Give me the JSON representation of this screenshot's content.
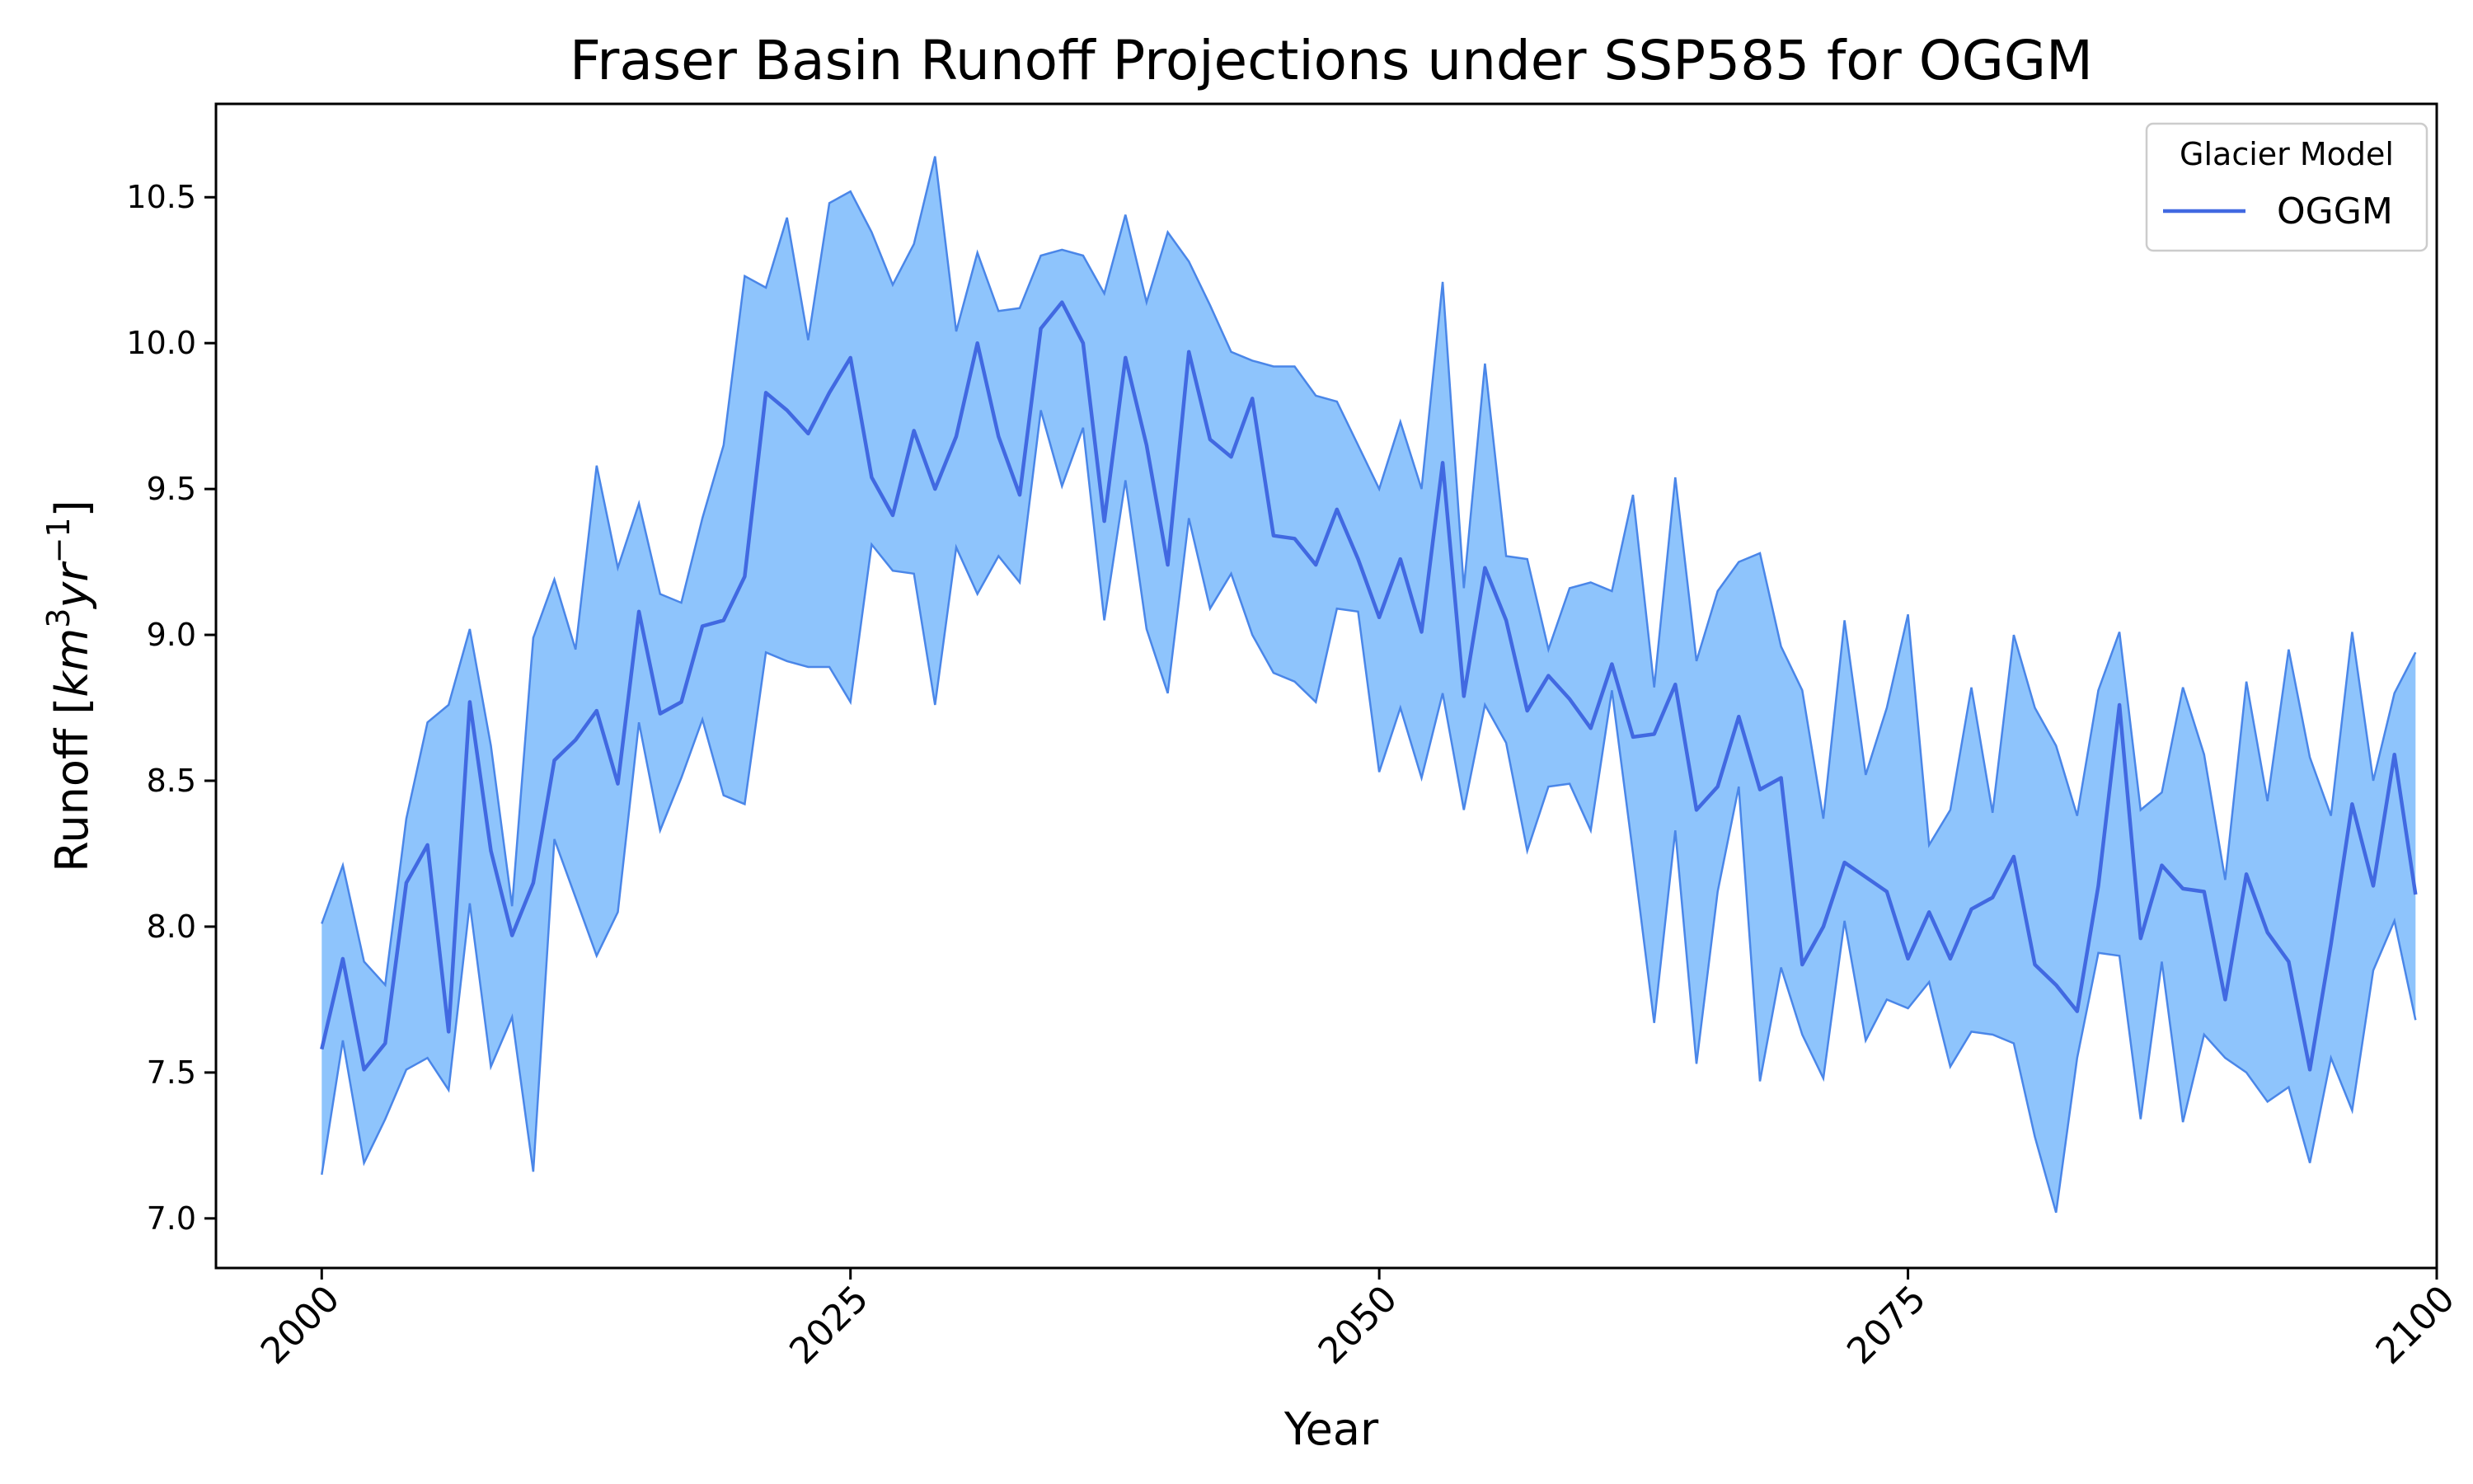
{
  "chart_data": {
    "type": "line",
    "title": "Fraser Basin Runoff Projections under SSP585 for OGGM",
    "xlabel": "Year",
    "ylabel_main": "Runoff [",
    "ylabel_unit_base": "km",
    "ylabel_unit_exp1": "3",
    "ylabel_unit_mid": "yr",
    "ylabel_unit_exp2": "−1",
    "ylabel_close": "]",
    "xlim": [
      1995,
      2100
    ],
    "ylim": [
      6.83,
      10.82
    ],
    "xticks": [
      2000,
      2025,
      2050,
      2075,
      2100
    ],
    "yticks": [
      7.0,
      7.5,
      8.0,
      8.5,
      9.0,
      9.5,
      10.0,
      10.5
    ],
    "ytick_labels": [
      "7.0",
      "7.5",
      "8.0",
      "8.5",
      "9.0",
      "9.5",
      "10.0",
      "10.5"
    ],
    "xtick_labels": [
      "2000",
      "2025",
      "2050",
      "2075",
      "2100"
    ],
    "grid": false,
    "legend": {
      "title": "Glacier Model",
      "position": "top-right",
      "entries": [
        "OGGM"
      ]
    },
    "colors": {
      "line": "#4169e1",
      "band_fill": "#8ec4fc",
      "band_edge": "#4a86e8"
    },
    "x": [
      2000,
      2001,
      2002,
      2003,
      2004,
      2005,
      2006,
      2007,
      2008,
      2009,
      2010,
      2011,
      2012,
      2013,
      2014,
      2015,
      2016,
      2017,
      2018,
      2019,
      2020,
      2021,
      2022,
      2023,
      2024,
      2025,
      2026,
      2027,
      2028,
      2029,
      2030,
      2031,
      2032,
      2033,
      2034,
      2035,
      2036,
      2037,
      2038,
      2039,
      2040,
      2041,
      2042,
      2043,
      2044,
      2045,
      2046,
      2047,
      2048,
      2049,
      2050,
      2051,
      2052,
      2053,
      2054,
      2055,
      2056,
      2057,
      2058,
      2059,
      2060,
      2061,
      2062,
      2063,
      2064,
      2065,
      2066,
      2067,
      2068,
      2069,
      2070,
      2071,
      2072,
      2073,
      2074,
      2075,
      2076,
      2077,
      2078,
      2079,
      2080,
      2081,
      2082,
      2083,
      2084,
      2085,
      2086,
      2087,
      2088,
      2089,
      2090,
      2091,
      2092,
      2093,
      2094,
      2095,
      2096,
      2097,
      2098,
      2099
    ],
    "series": [
      {
        "name": "OGGM",
        "values": [
          7.58,
          7.89,
          7.51,
          7.6,
          8.15,
          8.28,
          7.64,
          8.77,
          8.26,
          7.97,
          8.15,
          8.57,
          8.64,
          8.74,
          8.49,
          9.08,
          8.73,
          8.77,
          9.03,
          9.05,
          9.2,
          9.83,
          9.77,
          9.69,
          9.83,
          9.95,
          9.54,
          9.41,
          9.7,
          9.5,
          9.68,
          10.0,
          9.68,
          9.48,
          10.05,
          10.14,
          10.0,
          9.39,
          9.95,
          9.65,
          9.24,
          9.97,
          9.67,
          9.61,
          9.81,
          9.34,
          9.33,
          9.24,
          9.43,
          9.26,
          9.06,
          9.26,
          9.01,
          9.59,
          8.79,
          9.23,
          9.05,
          8.74,
          8.86,
          8.78,
          8.68,
          8.9,
          8.65,
          8.66,
          8.83,
          8.4,
          8.48,
          8.72,
          8.47,
          8.51,
          7.87,
          8.0,
          8.22,
          8.17,
          8.12,
          7.89,
          8.05,
          7.89,
          8.06,
          8.1,
          8.24,
          7.87,
          7.8,
          7.71,
          8.14,
          8.76,
          7.96,
          8.21,
          8.13,
          8.12,
          7.75,
          8.18,
          7.98,
          7.88,
          7.51,
          7.94,
          8.42,
          8.14,
          8.59,
          8.11
        ]
      }
    ],
    "band": {
      "upper": [
        8.01,
        8.21,
        7.88,
        7.8,
        8.37,
        8.7,
        8.76,
        9.02,
        8.62,
        8.07,
        8.99,
        9.19,
        8.95,
        9.58,
        9.23,
        9.45,
        9.14,
        9.11,
        9.4,
        9.65,
        10.23,
        10.19,
        10.43,
        10.01,
        10.48,
        10.52,
        10.38,
        10.2,
        10.34,
        10.64,
        10.04,
        10.31,
        10.11,
        10.12,
        10.3,
        10.32,
        10.3,
        10.17,
        10.44,
        10.14,
        10.38,
        10.28,
        10.13,
        9.97,
        9.94,
        9.92,
        9.92,
        9.82,
        9.8,
        9.65,
        9.5,
        9.73,
        9.5,
        10.21,
        9.16,
        9.93,
        9.27,
        9.26,
        8.95,
        9.16,
        9.18,
        9.15,
        9.48,
        8.82,
        9.54,
        8.91,
        9.15,
        9.25,
        9.28,
        8.96,
        8.81,
        8.37,
        9.05,
        8.52,
        8.75,
        9.07,
        8.28,
        8.4,
        8.82,
        8.39,
        9.0,
        8.75,
        8.62,
        8.38,
        8.81,
        9.01,
        8.4,
        8.46,
        8.82,
        8.59,
        8.16,
        8.84,
        8.43,
        8.95,
        8.58,
        8.38,
        9.01,
        8.5,
        8.8,
        8.94
      ],
      "lower": [
        7.15,
        7.61,
        7.19,
        7.34,
        7.51,
        7.55,
        7.44,
        8.08,
        7.52,
        7.69,
        7.16,
        8.3,
        8.1,
        7.9,
        8.05,
        8.7,
        8.33,
        8.51,
        8.71,
        8.45,
        8.42,
        8.94,
        8.91,
        8.89,
        8.89,
        8.77,
        9.31,
        9.22,
        9.21,
        8.76,
        9.3,
        9.14,
        9.27,
        9.18,
        9.77,
        9.51,
        9.71,
        9.05,
        9.53,
        9.02,
        8.8,
        9.4,
        9.09,
        9.21,
        9.0,
        8.87,
        8.84,
        8.77,
        9.09,
        9.08,
        8.53,
        8.75,
        8.51,
        8.8,
        8.4,
        8.76,
        8.63,
        8.26,
        8.48,
        8.49,
        8.33,
        8.81,
        8.25,
        7.67,
        8.33,
        7.53,
        8.12,
        8.48,
        7.47,
        7.86,
        7.63,
        7.48,
        8.02,
        7.61,
        7.75,
        7.72,
        7.81,
        7.52,
        7.64,
        7.63,
        7.6,
        7.28,
        7.02,
        7.55,
        7.91,
        7.9,
        7.34,
        7.88,
        7.33,
        7.63,
        7.55,
        7.5,
        7.4,
        7.45,
        7.19,
        7.55,
        7.37,
        7.85,
        8.02,
        7.68
      ]
    }
  }
}
